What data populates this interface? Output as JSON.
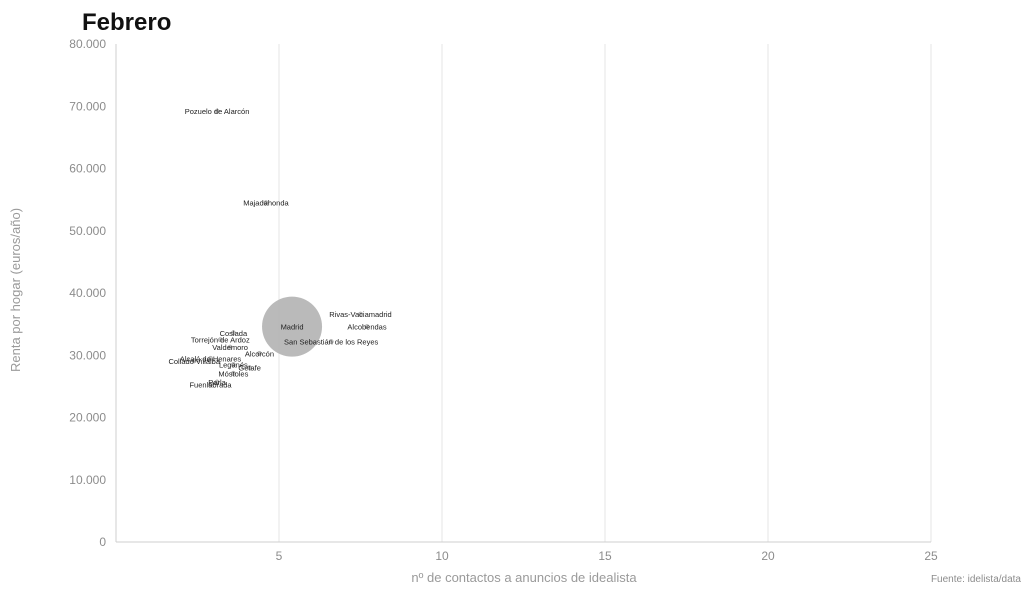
{
  "chart_data": {
    "type": "scatter",
    "title": "Febrero",
    "xlabel": "nº de contactos a anuncios de idealista",
    "ylabel": "Renta por hogar (euros/año)",
    "source": "Fuente: idelista/data",
    "xlim": [
      0,
      25
    ],
    "ylim": [
      0,
      80000
    ],
    "x_ticks": [
      "5",
      "10",
      "15",
      "20",
      "25"
    ],
    "y_ticks": [
      "0",
      "10.000",
      "20.000",
      "30.000",
      "40.000",
      "50.000",
      "60.000",
      "70.000",
      "80.000"
    ],
    "grid": "vertical",
    "colors": {
      "point": "#b3b3b3",
      "point_stroke": "#9e9e9e",
      "grid": "#e4e4e4"
    },
    "points": [
      {
        "name": "Pozuelo de Alarcón",
        "x": 3.1,
        "y": 69200,
        "size": 1
      },
      {
        "name": "Majadahonda",
        "x": 4.6,
        "y": 54500,
        "size": 1
      },
      {
        "name": "Madrid",
        "x": 5.4,
        "y": 34600,
        "size": 30
      },
      {
        "name": "Rivas-Vaciamadrid",
        "x": 7.5,
        "y": 36600,
        "size": 1
      },
      {
        "name": "Alcobendas",
        "x": 7.7,
        "y": 34600,
        "size": 1
      },
      {
        "name": "San Sebastián de los Reyes",
        "x": 6.6,
        "y": 32200,
        "size": 1
      },
      {
        "name": "Coslada",
        "x": 3.6,
        "y": 33600,
        "size": 1
      },
      {
        "name": "Torrejón de Ardoz",
        "x": 3.2,
        "y": 32500,
        "size": 1
      },
      {
        "name": "Valdemoro",
        "x": 3.5,
        "y": 31300,
        "size": 1
      },
      {
        "name": "Alcorcón",
        "x": 4.4,
        "y": 30300,
        "size": 1
      },
      {
        "name": "Alcalá de Henares",
        "x": 2.9,
        "y": 29500,
        "size": 1
      },
      {
        "name": "Collado Villalba",
        "x": 2.4,
        "y": 29100,
        "size": 1
      },
      {
        "name": "Leganés",
        "x": 3.6,
        "y": 28500,
        "size": 1
      },
      {
        "name": "Getafe",
        "x": 4.1,
        "y": 28000,
        "size": 1
      },
      {
        "name": "Móstoles",
        "x": 3.6,
        "y": 27100,
        "size": 1
      },
      {
        "name": "Parla",
        "x": 3.1,
        "y": 25700,
        "size": 1
      },
      {
        "name": "Fuenlabrada",
        "x": 2.9,
        "y": 25300,
        "size": 1
      }
    ]
  }
}
